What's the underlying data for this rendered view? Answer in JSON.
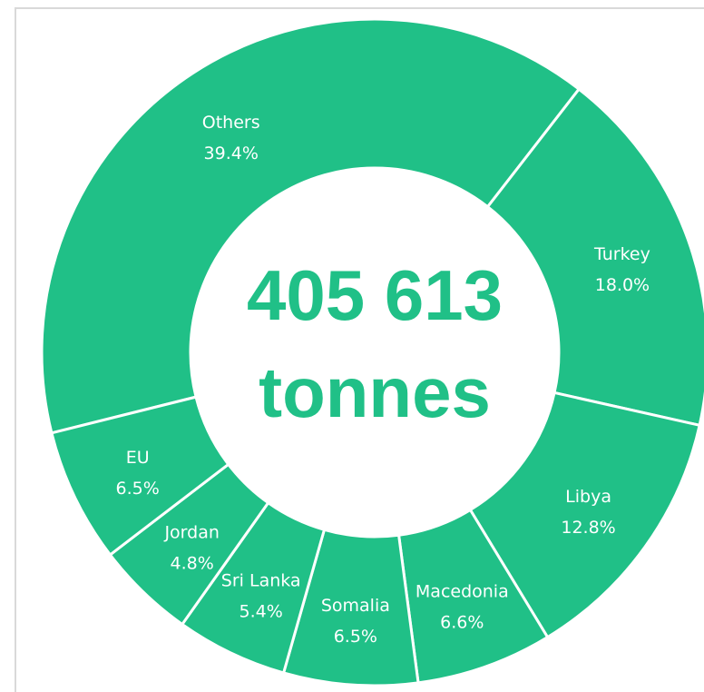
{
  "chart_data": {
    "type": "pie",
    "categories": [
      "Others",
      "Turkey",
      "Libya",
      "Macedonia",
      "Somalia",
      "Sri Lanka",
      "Jordan",
      "EU"
    ],
    "values": [
      39.4,
      18.0,
      12.8,
      6.6,
      6.5,
      5.4,
      4.8,
      6.5
    ],
    "value_labels": [
      "39.4%",
      "18.0%",
      "12.8%",
      "6.6%",
      "6.5%",
      "5.4%",
      "4.8%",
      "6.5%"
    ],
    "center_text": [
      "405 613",
      "tonnes"
    ],
    "slice_color": "#20c087",
    "separator_color": "#ffffff",
    "center_text_color": "#20c087"
  }
}
